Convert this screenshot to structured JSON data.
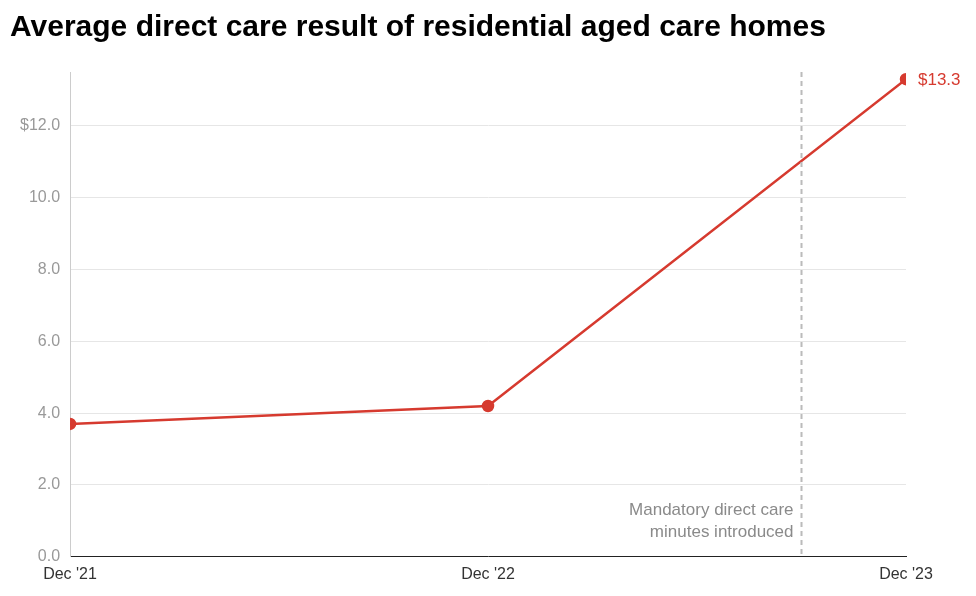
{
  "chart_data": {
    "type": "line",
    "title": "Average direct care result of residential aged care homes",
    "categories": [
      "Dec '21",
      "Dec '22",
      "Dec '23"
    ],
    "values": [
      3.7,
      4.2,
      13.3
    ],
    "value_labels": [
      null,
      null,
      "$13.3"
    ],
    "data_labels": true,
    "color": "#d63a2f",
    "marker": "circle",
    "ylim": [
      0,
      13.5
    ],
    "yticks": [
      {
        "value": 0,
        "label": "0.0"
      },
      {
        "value": 2,
        "label": "2.0"
      },
      {
        "value": 4,
        "label": "4.0"
      },
      {
        "value": 6,
        "label": "6.0"
      },
      {
        "value": 8,
        "label": "8.0"
      },
      {
        "value": 10,
        "label": "10.0"
      },
      {
        "value": 12,
        "label": "$12.0"
      }
    ],
    "grid": true,
    "annotations": [
      {
        "text": [
          "Mandatory direct care",
          "minutes introduced"
        ],
        "x": 1.75
      }
    ]
  }
}
